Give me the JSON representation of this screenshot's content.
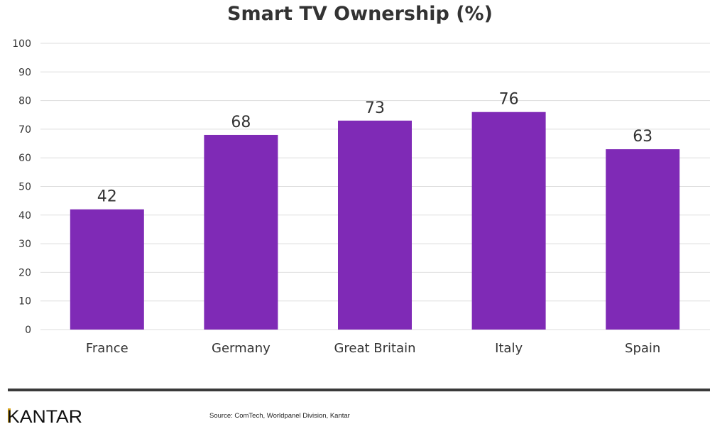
{
  "chart_data": {
    "type": "bar",
    "title": "Smart TV Ownership (%)",
    "categories": [
      "France",
      "Germany",
      "Great Britain",
      "Italy",
      "Spain"
    ],
    "values": [
      42,
      68,
      73,
      76,
      63
    ],
    "data_labels": [
      "42",
      "68",
      "73",
      "76",
      "63"
    ],
    "xlabel": "",
    "ylabel": "",
    "ylim": [
      0,
      100
    ],
    "yticks": [
      0,
      10,
      20,
      30,
      40,
      50,
      60,
      70,
      80,
      90,
      100
    ],
    "grid": true,
    "legend": "none",
    "bar_color": "#7f2ab6"
  },
  "footer": {
    "logo_text": "KANTAR",
    "source": "Source: ComTech, Worldpanel Division, Kantar"
  },
  "colors": {
    "logo_accent": "#d4a017",
    "text": "#333333",
    "grid": "#dddddd"
  }
}
